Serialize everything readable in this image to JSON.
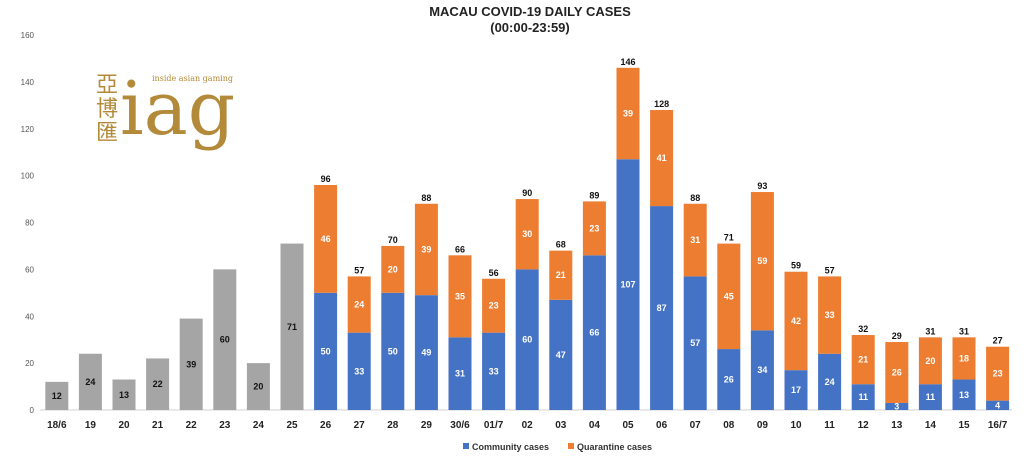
{
  "chart_data": {
    "type": "bar",
    "title": "MACAU COVID-19 DAILY CASES",
    "subtitle": "(00:00-23:59)",
    "ylim": [
      0,
      160
    ],
    "yticks": [
      0,
      20,
      40,
      60,
      80,
      100,
      120,
      140,
      160
    ],
    "categories": [
      "18/6",
      "19",
      "20",
      "21",
      "22",
      "23",
      "24",
      "25",
      "26",
      "27",
      "28",
      "29",
      "30/6",
      "01/7",
      "02",
      "03",
      "04",
      "05",
      "06",
      "07",
      "08",
      "09",
      "10",
      "11",
      "12",
      "13",
      "14",
      "15",
      "16/7"
    ],
    "totals": [
      12,
      24,
      13,
      22,
      39,
      60,
      20,
      71,
      96,
      57,
      70,
      88,
      66,
      56,
      90,
      68,
      89,
      146,
      128,
      88,
      71,
      93,
      59,
      57,
      32,
      29,
      31,
      31,
      27
    ],
    "series": [
      {
        "name": "Community cases",
        "color": "#4472c4",
        "values": [
          null,
          null,
          null,
          null,
          null,
          null,
          null,
          null,
          50,
          33,
          50,
          49,
          31,
          33,
          60,
          47,
          66,
          107,
          87,
          57,
          26,
          34,
          17,
          24,
          11,
          3,
          11,
          13,
          4
        ]
      },
      {
        "name": "Quarantine cases",
        "color": "#ed7d31",
        "values": [
          null,
          null,
          null,
          null,
          null,
          null,
          null,
          null,
          46,
          24,
          20,
          39,
          35,
          23,
          30,
          21,
          23,
          39,
          41,
          31,
          45,
          59,
          42,
          33,
          21,
          26,
          20,
          18,
          23
        ]
      }
    ],
    "unsplit_color": "#a5a5a5",
    "legend_position": "bottom-right",
    "grid": false
  },
  "logo": {
    "cjk": [
      "亞",
      "博",
      "匯"
    ],
    "tagline": "inside asian gaming",
    "wordmark": "iag"
  }
}
